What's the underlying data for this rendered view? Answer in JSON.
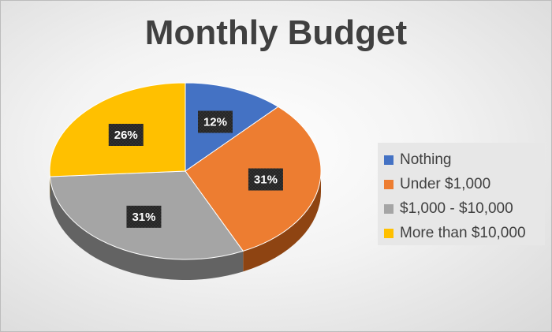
{
  "chart_data": {
    "type": "pie",
    "title": "Monthly Budget",
    "categories": [
      "Nothing",
      "Under $1,000",
      "$1,000 - $10,000",
      "More than $10,000"
    ],
    "values": [
      12,
      31,
      31,
      26
    ],
    "data_labels": [
      "12%",
      "31%",
      "31%",
      "26%"
    ],
    "colors": [
      "#4472C4",
      "#ED7D31",
      "#A5A5A5",
      "#FFC000"
    ],
    "side_colors": [
      "#2f528f",
      "#8e4412",
      "#636363",
      "#a87c00"
    ],
    "legend_position": "right",
    "style": "3d"
  }
}
